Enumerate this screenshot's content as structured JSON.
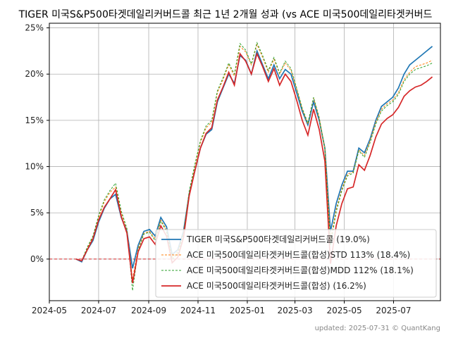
{
  "chart_data": {
    "type": "line",
    "title": "TIGER 미국S&P500타겟데일리커버드콜 최근 1년 2개월 성과 (vs ACE 미국500데일리타겟커버드",
    "xlabel": "",
    "ylabel": "",
    "x_ticks": [
      "2024-05",
      "2024-07",
      "2024-09",
      "2024-11",
      "2025-01",
      "2025-03",
      "2025-05",
      "2025-07"
    ],
    "y_ticks": [
      "0%",
      "5%",
      "10%",
      "15%",
      "20%",
      "25%"
    ],
    "xlim": [
      "2024-05-01",
      "2025-08-28"
    ],
    "ylim": [
      -4.5,
      25.5
    ],
    "grid": true,
    "legend_position": "lower-right",
    "reference_line": {
      "y": 0,
      "color": "#d62728",
      "style": "dashed"
    },
    "footer": "updated: 2025-07-31 © QuantKang",
    "x": [
      "2024-06-03",
      "2024-06-10",
      "2024-06-17",
      "2024-06-24",
      "2024-07-01",
      "2024-07-08",
      "2024-07-15",
      "2024-07-22",
      "2024-07-29",
      "2024-08-05",
      "2024-08-12",
      "2024-08-19",
      "2024-08-26",
      "2024-09-02",
      "2024-09-09",
      "2024-09-16",
      "2024-09-23",
      "2024-09-30",
      "2024-10-07",
      "2024-10-14",
      "2024-10-21",
      "2024-10-28",
      "2024-11-04",
      "2024-11-11",
      "2024-11-18",
      "2024-11-25",
      "2024-12-02",
      "2024-12-09",
      "2024-12-16",
      "2024-12-23",
      "2024-12-30",
      "2025-01-06",
      "2025-01-13",
      "2025-01-20",
      "2025-01-27",
      "2025-02-03",
      "2025-02-10",
      "2025-02-17",
      "2025-02-24",
      "2025-03-03",
      "2025-03-10",
      "2025-03-17",
      "2025-03-24",
      "2025-03-31",
      "2025-04-07",
      "2025-04-14",
      "2025-04-21",
      "2025-04-28",
      "2025-05-05",
      "2025-05-12",
      "2025-05-19",
      "2025-05-26",
      "2025-06-02",
      "2025-06-09",
      "2025-06-16",
      "2025-06-23",
      "2025-06-30",
      "2025-07-07",
      "2025-07-14",
      "2025-07-21",
      "2025-07-28",
      "2025-08-04",
      "2025-08-11",
      "2025-08-18"
    ],
    "series": [
      {
        "name": "TIGER 미국S&P500타겟데일리커버드콜 (19.0%)",
        "color": "#1f77b4",
        "style": "solid",
        "values": [
          0.0,
          -0.3,
          1.0,
          2.0,
          4.0,
          5.5,
          6.5,
          7.0,
          4.5,
          3.0,
          -1.0,
          1.5,
          3.0,
          3.2,
          2.5,
          4.5,
          3.5,
          0.5,
          1.0,
          3.0,
          7.0,
          9.5,
          12.0,
          13.5,
          14.0,
          17.0,
          18.5,
          20.0,
          19.0,
          22.0,
          21.5,
          20.0,
          22.5,
          21.0,
          19.5,
          21.0,
          19.5,
          20.5,
          20.0,
          18.0,
          16.0,
          14.5,
          17.0,
          15.0,
          12.0,
          3.0,
          6.0,
          8.0,
          9.5,
          9.5,
          12.0,
          11.5,
          13.0,
          15.0,
          16.5,
          17.0,
          17.5,
          18.5,
          20.0,
          21.0,
          21.5,
          22.0,
          22.5,
          23.0
        ]
      },
      {
        "name": "ACE 미국500데일리타겟커버드콜(합성)STD 113% (18.4%)",
        "color": "#ff7f0e",
        "style": "dashed",
        "values": [
          0.0,
          -0.2,
          1.2,
          2.4,
          4.5,
          6.2,
          7.2,
          7.8,
          5.0,
          3.2,
          -2.2,
          1.2,
          2.8,
          3.0,
          2.2,
          4.2,
          3.2,
          0.2,
          0.8,
          2.8,
          7.2,
          10.0,
          12.6,
          14.2,
          14.8,
          18.0,
          19.4,
          21.0,
          19.8,
          23.0,
          22.4,
          21.0,
          23.2,
          21.8,
          20.2,
          21.6,
          20.0,
          21.2,
          20.4,
          18.4,
          16.2,
          14.6,
          17.4,
          15.2,
          12.0,
          2.0,
          5.4,
          7.6,
          9.2,
          9.4,
          11.8,
          11.2,
          12.8,
          14.8,
          16.2,
          16.8,
          17.2,
          18.0,
          19.4,
          20.2,
          20.8,
          21.0,
          21.2,
          21.5
        ]
      },
      {
        "name": "ACE 미국500데일리타겟커버드콜(합성)MDD 112% (18.1%)",
        "color": "#2ca02c",
        "style": "dashed",
        "values": [
          0.0,
          -0.2,
          1.3,
          2.5,
          4.7,
          6.4,
          7.4,
          8.2,
          5.2,
          3.3,
          -3.4,
          1.0,
          2.7,
          2.9,
          2.0,
          4.1,
          3.0,
          0.0,
          0.6,
          2.7,
          7.3,
          10.2,
          12.8,
          14.4,
          15.0,
          18.2,
          19.6,
          21.2,
          20.0,
          23.3,
          22.6,
          21.1,
          23.4,
          22.0,
          20.4,
          21.8,
          20.1,
          21.4,
          20.6,
          18.5,
          16.3,
          14.7,
          17.5,
          15.3,
          11.9,
          1.5,
          5.1,
          7.4,
          9.0,
          9.3,
          11.7,
          11.0,
          12.6,
          14.6,
          16.0,
          16.6,
          17.0,
          17.8,
          19.2,
          20.0,
          20.5,
          20.7,
          20.9,
          21.2
        ]
      },
      {
        "name": "ACE 미국500데일리타겟커버드콜(합성) (16.2%)",
        "color": "#d62728",
        "style": "solid",
        "values": [
          0.0,
          -0.2,
          1.0,
          2.2,
          4.2,
          5.6,
          6.5,
          7.5,
          4.6,
          2.8,
          -2.6,
          0.8,
          2.2,
          2.4,
          1.6,
          3.6,
          2.5,
          -0.4,
          0.2,
          2.3,
          6.8,
          9.5,
          12.0,
          13.6,
          14.2,
          17.2,
          18.6,
          20.2,
          18.8,
          22.2,
          21.4,
          20.0,
          22.2,
          20.8,
          19.2,
          20.6,
          18.8,
          20.0,
          19.2,
          17.2,
          15.0,
          13.4,
          16.2,
          14.0,
          10.6,
          -0.5,
          3.6,
          6.0,
          7.6,
          7.8,
          10.2,
          9.6,
          11.2,
          13.2,
          14.6,
          15.2,
          15.6,
          16.4,
          17.6,
          18.2,
          18.6,
          18.8,
          19.2,
          19.7
        ]
      }
    ]
  }
}
